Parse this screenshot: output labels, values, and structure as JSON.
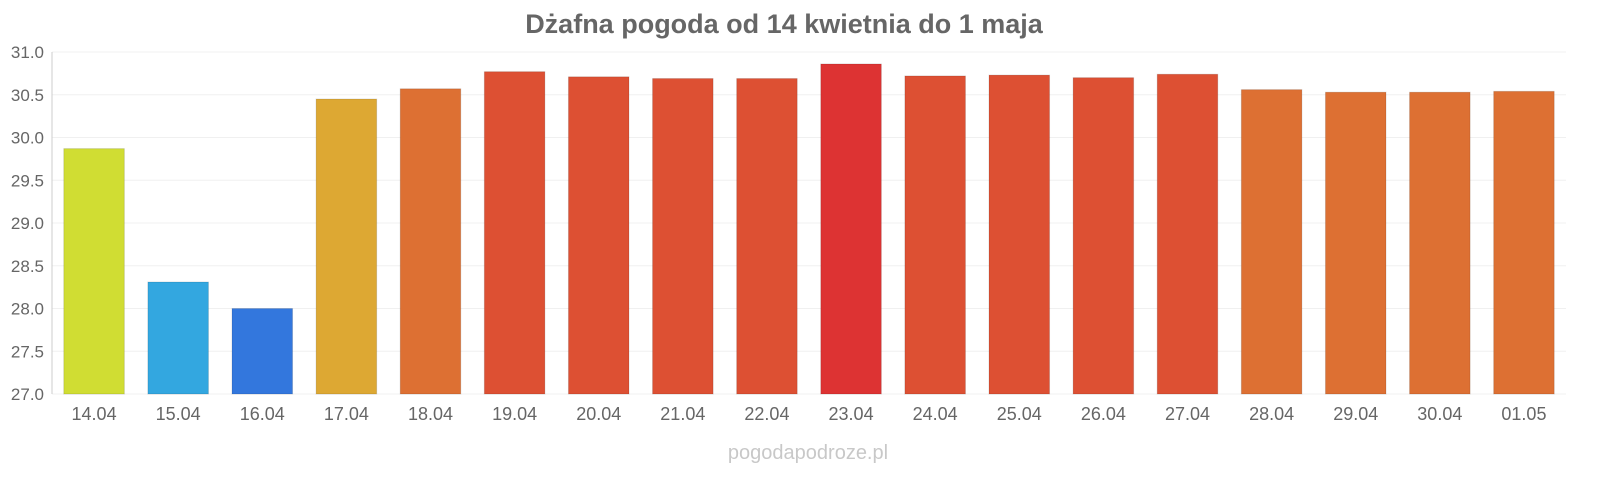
{
  "chart_data": {
    "type": "bar",
    "title": "Dżafna pogoda od 14 kwietnia do 1 maja",
    "xlabel": "",
    "ylabel": "",
    "ylim": [
      27.0,
      31.0
    ],
    "yticks": [
      "27.0",
      "27.5",
      "28.0",
      "28.5",
      "29.0",
      "29.5",
      "30.0",
      "30.5",
      "31.0"
    ],
    "grid": true,
    "categories": [
      "14.04",
      "15.04",
      "16.04",
      "17.04",
      "18.04",
      "19.04",
      "20.04",
      "21.04",
      "22.04",
      "23.04",
      "24.04",
      "25.04",
      "26.04",
      "27.04",
      "28.04",
      "29.04",
      "30.04",
      "01.05"
    ],
    "values": [
      29.87,
      28.31,
      28.0,
      30.45,
      30.57,
      30.77,
      30.71,
      30.69,
      30.69,
      30.86,
      30.72,
      30.73,
      30.7,
      30.74,
      30.56,
      30.53,
      30.53,
      30.54
    ],
    "colors": [
      "#d0dd33",
      "#33a7e0",
      "#3377dd",
      "#dda833",
      "#dd7033",
      "#dd5033",
      "#dd5033",
      "#dd5033",
      "#dd5033",
      "#dd3333",
      "#dd5033",
      "#dd5033",
      "#dd5033",
      "#dd5033",
      "#dd7033",
      "#dd7033",
      "#dd7033",
      "#dd7033"
    ]
  },
  "watermark": "pogodapodroze.pl"
}
